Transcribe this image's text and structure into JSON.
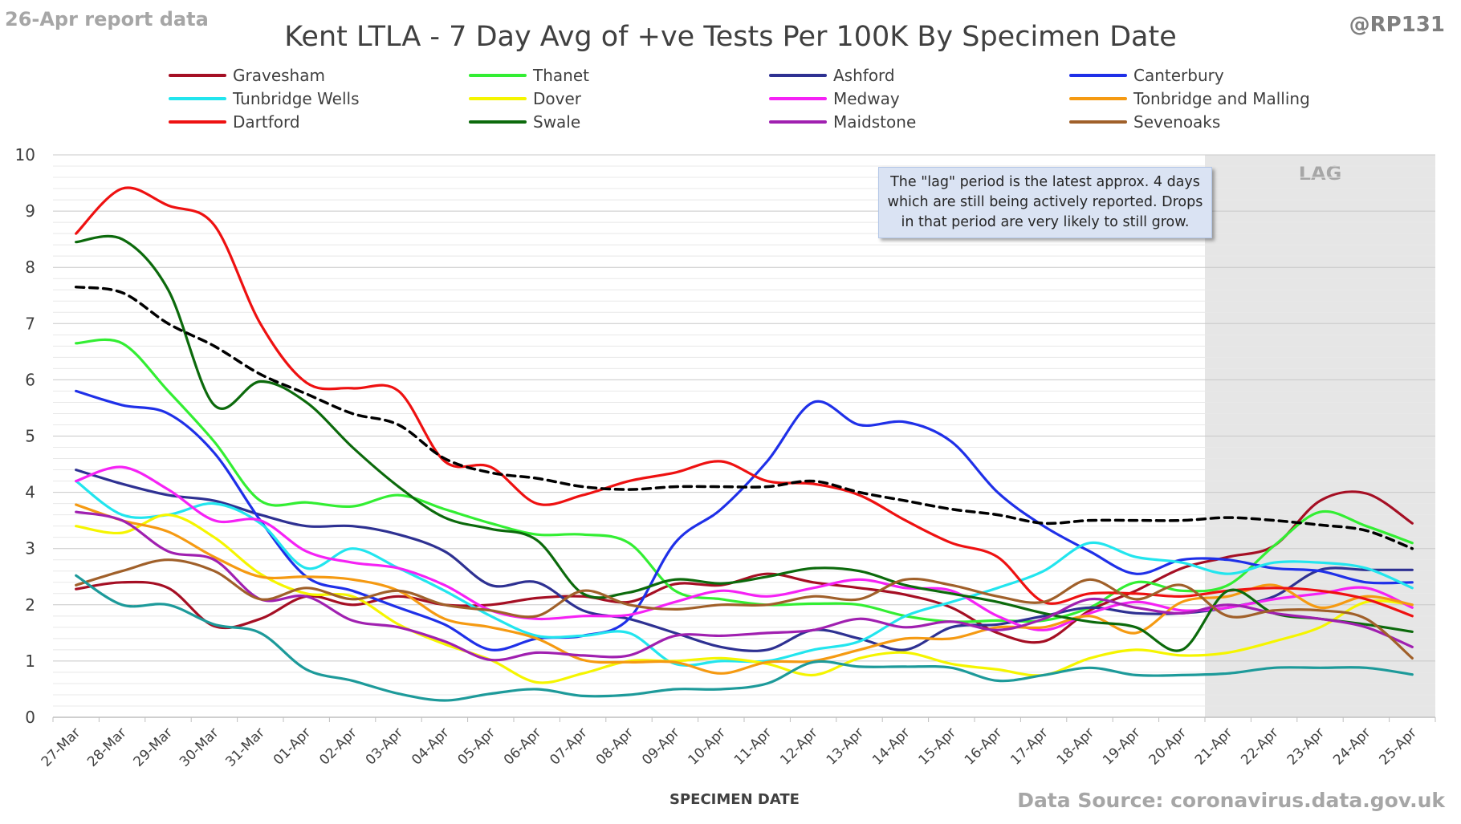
{
  "header": {
    "report_label": "26-Apr report data",
    "handle": "@RP131",
    "title": "Kent  LTLA - 7 Day Avg of +ve Tests Per 100K By Specimen Date",
    "source": "Data Source: coronavirus.data.gov.uk"
  },
  "annotation": {
    "text": "The \"lag\" period is the latest approx. 4 days which are still being actively reported.  Drops in that period are very likely to still grow."
  },
  "lag_label": "LAG",
  "chart_data": {
    "type": "line",
    "title": "Kent  LTLA - 7 Day Avg of +ve Tests Per 100K By Specimen Date",
    "xlabel": "SPECIMEN DATE",
    "ylabel": "",
    "ylim": [
      0,
      10
    ],
    "yticks": [
      "0",
      "1",
      "2",
      "3",
      "4",
      "5",
      "6",
      "7",
      "8",
      "9",
      "10"
    ],
    "legend_position": "top",
    "lag_start_index": 25,
    "grid": true,
    "categories": [
      "27-Mar",
      "28-Mar",
      "29-Mar",
      "30-Mar",
      "31-Mar",
      "01-Apr",
      "02-Apr",
      "03-Apr",
      "04-Apr",
      "05-Apr",
      "06-Apr",
      "07-Apr",
      "08-Apr",
      "09-Apr",
      "10-Apr",
      "11-Apr",
      "12-Apr",
      "13-Apr",
      "14-Apr",
      "15-Apr",
      "16-Apr",
      "17-Apr",
      "18-Apr",
      "19-Apr",
      "20-Apr",
      "21-Apr",
      "22-Apr",
      "23-Apr",
      "24-Apr",
      "25-Apr"
    ],
    "series": [
      {
        "name": "Gravesham",
        "color": "#a50f24",
        "values": [
          2.28,
          2.4,
          2.3,
          1.62,
          1.75,
          2.15,
          2.0,
          2.15,
          2.0,
          2.0,
          2.12,
          2.15,
          2.05,
          2.37,
          2.35,
          2.55,
          2.4,
          2.3,
          2.18,
          1.95,
          1.5,
          1.35,
          1.9,
          2.25,
          2.65,
          2.85,
          3.05,
          3.85,
          3.98,
          3.45
        ]
      },
      {
        "name": "Thanet",
        "color": "#33ee33",
        "values": [
          6.65,
          6.65,
          5.8,
          4.9,
          3.85,
          3.82,
          3.75,
          3.95,
          3.7,
          3.45,
          3.25,
          3.25,
          3.1,
          2.25,
          2.1,
          2.0,
          2.02,
          2.0,
          1.8,
          1.7,
          1.72,
          1.72,
          1.95,
          2.4,
          2.25,
          2.35,
          3.05,
          3.65,
          3.4,
          3.1
        ]
      },
      {
        "name": "Ashford",
        "color": "#2e3192",
        "values": [
          4.4,
          4.15,
          3.95,
          3.85,
          3.6,
          3.4,
          3.4,
          3.25,
          2.95,
          2.35,
          2.4,
          1.9,
          1.75,
          1.5,
          1.25,
          1.2,
          1.55,
          1.4,
          1.2,
          1.6,
          1.65,
          1.8,
          1.95,
          1.85,
          1.85,
          1.95,
          2.15,
          2.62,
          2.62,
          2.62
        ]
      },
      {
        "name": "Canterbury",
        "color": "#1f30e8",
        "values": [
          5.8,
          5.55,
          5.4,
          4.7,
          3.5,
          2.5,
          2.25,
          1.95,
          1.65,
          1.2,
          1.4,
          1.45,
          1.75,
          3.1,
          3.7,
          4.55,
          5.6,
          5.2,
          5.25,
          4.9,
          4.0,
          3.4,
          2.95,
          2.55,
          2.8,
          2.8,
          2.65,
          2.6,
          2.4,
          2.4
        ]
      },
      {
        "name": "Tunbridge Wells",
        "color": "#22e5ee",
        "values": [
          4.2,
          3.6,
          3.6,
          3.8,
          3.45,
          2.65,
          3.0,
          2.65,
          2.25,
          1.8,
          1.45,
          1.45,
          1.5,
          0.95,
          1.0,
          1.0,
          1.2,
          1.35,
          1.8,
          2.05,
          2.3,
          2.6,
          3.1,
          2.85,
          2.75,
          2.55,
          2.75,
          2.75,
          2.65,
          2.3
        ]
      },
      {
        "name": "Dover",
        "color": "#f5f500",
        "values": [
          3.4,
          3.28,
          3.6,
          3.2,
          2.55,
          2.2,
          2.15,
          1.65,
          1.3,
          1.02,
          0.62,
          0.78,
          1.0,
          1.0,
          1.05,
          0.95,
          0.75,
          1.05,
          1.15,
          0.95,
          0.85,
          0.75,
          1.05,
          1.2,
          1.1,
          1.15,
          1.35,
          1.6,
          2.05,
          2.0
        ]
      },
      {
        "name": "Medway",
        "color": "#f522f5",
        "values": [
          4.2,
          4.45,
          4.05,
          3.5,
          3.5,
          2.95,
          2.75,
          2.65,
          2.35,
          1.9,
          1.75,
          1.8,
          1.82,
          2.05,
          2.25,
          2.15,
          2.3,
          2.45,
          2.3,
          2.25,
          1.8,
          1.55,
          1.85,
          2.05,
          1.9,
          1.95,
          2.1,
          2.2,
          2.3,
          1.95
        ]
      },
      {
        "name": "Tonbridge and Malling",
        "color": "#f59a12",
        "values": [
          3.78,
          3.5,
          3.3,
          2.85,
          2.5,
          2.5,
          2.45,
          2.25,
          1.75,
          1.6,
          1.4,
          1.02,
          0.98,
          0.98,
          0.78,
          0.98,
          1.0,
          1.2,
          1.4,
          1.4,
          1.6,
          1.6,
          1.8,
          1.5,
          2.05,
          2.15,
          2.35,
          1.95,
          2.15,
          2.0
        ]
      },
      {
        "name": "Dartford",
        "color": "#ee1111",
        "values": [
          8.6,
          9.4,
          9.1,
          8.75,
          7.0,
          5.95,
          5.85,
          5.8,
          4.55,
          4.45,
          3.8,
          3.95,
          4.2,
          4.35,
          4.55,
          4.2,
          4.15,
          3.95,
          3.5,
          3.1,
          2.85,
          2.05,
          2.2,
          2.2,
          2.15,
          2.25,
          2.3,
          2.25,
          2.1,
          1.8
        ]
      },
      {
        "name": "Swale",
        "color": "#0c6a0c",
        "values": [
          8.45,
          8.5,
          7.6,
          5.55,
          5.97,
          5.6,
          4.8,
          4.1,
          3.55,
          3.35,
          3.15,
          2.2,
          2.22,
          2.45,
          2.38,
          2.5,
          2.65,
          2.6,
          2.35,
          2.2,
          2.05,
          1.85,
          1.7,
          1.6,
          1.2,
          2.25,
          1.85,
          1.75,
          1.65,
          1.52
        ]
      },
      {
        "name": "Maidstone",
        "color": "#a020b0",
        "values": [
          3.65,
          3.5,
          2.95,
          2.8,
          2.1,
          2.15,
          1.72,
          1.6,
          1.35,
          1.02,
          1.15,
          1.1,
          1.1,
          1.45,
          1.45,
          1.5,
          1.55,
          1.75,
          1.6,
          1.7,
          1.55,
          1.75,
          2.1,
          1.95,
          1.85,
          2.0,
          1.85,
          1.75,
          1.6,
          1.25
        ]
      },
      {
        "name": "Sevenoaks",
        "color": "#a0602a",
        "values": [
          2.35,
          2.6,
          2.8,
          2.6,
          2.1,
          2.3,
          2.1,
          2.25,
          2.0,
          1.9,
          1.8,
          2.25,
          2.0,
          1.92,
          2.0,
          2.0,
          2.15,
          2.1,
          2.45,
          2.35,
          2.15,
          2.05,
          2.45,
          2.1,
          2.35,
          1.8,
          1.9,
          1.9,
          1.75,
          1.05
        ]
      },
      {
        "name": "",
        "color": "#1d9a9a",
        "values": [
          2.52,
          2.0,
          2.0,
          1.65,
          1.5,
          0.85,
          0.65,
          0.42,
          0.3,
          0.42,
          0.5,
          0.38,
          0.4,
          0.5,
          0.5,
          0.6,
          0.98,
          0.9,
          0.9,
          0.88,
          0.65,
          0.75,
          0.88,
          0.75,
          0.75,
          0.78,
          0.88,
          0.88,
          0.88,
          0.76
        ]
      },
      {
        "name": "",
        "color": "#000000",
        "dashed": true,
        "values": [
          7.65,
          7.55,
          7.0,
          6.6,
          6.1,
          5.75,
          5.4,
          5.2,
          4.6,
          4.35,
          4.25,
          4.1,
          4.05,
          4.1,
          4.1,
          4.1,
          4.2,
          4.0,
          3.85,
          3.7,
          3.6,
          3.45,
          3.5,
          3.5,
          3.5,
          3.55,
          3.5,
          3.42,
          3.32,
          3.0
        ]
      }
    ]
  }
}
